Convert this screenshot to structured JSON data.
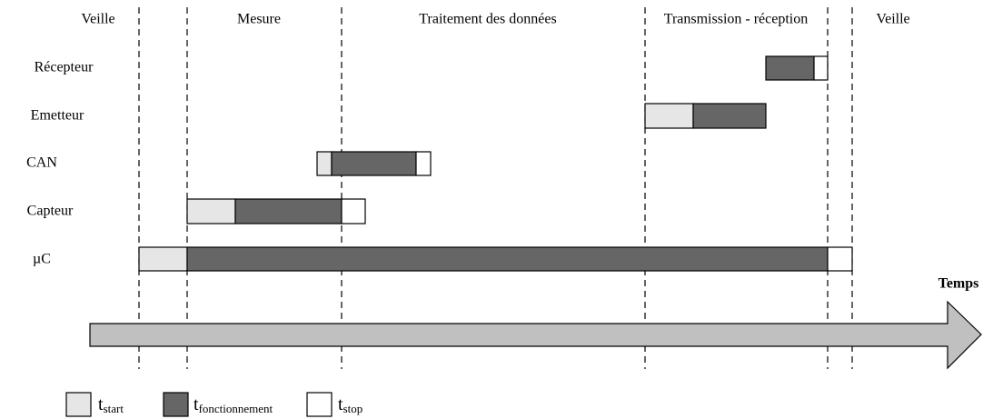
{
  "diagram": {
    "phases": [
      "Veille",
      "Mesure",
      "Traitement des données",
      "Transmission - réception",
      "Veille"
    ],
    "rows": [
      "Récepteur",
      "Emetteur",
      "CAN",
      "Capteur",
      "µC"
    ],
    "axis_label": "Temps",
    "legend": [
      {
        "symbol": "t",
        "subscript": "start"
      },
      {
        "symbol": "t",
        "subscript": "fonctionnement"
      },
      {
        "symbol": "t",
        "subscript": "stop"
      }
    ]
  }
}
